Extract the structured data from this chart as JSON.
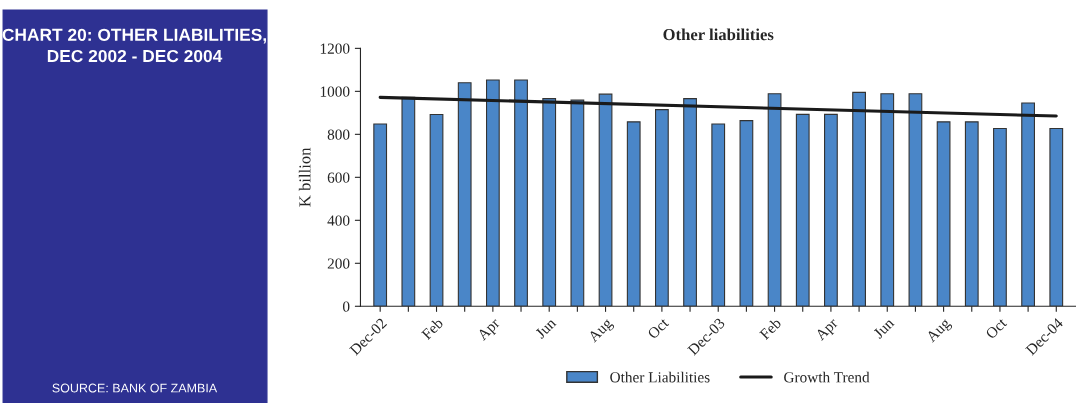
{
  "chart_data": {
    "type": "bar",
    "title": "Other liabilities",
    "subtitle": "CHART 20: OTHER LIABILITIES, DEC 2002 - DEC 2004",
    "ylabel": "K billion",
    "categories": [
      "Dec-02",
      null,
      "Feb",
      null,
      "Apr",
      null,
      "Jun",
      null,
      "Aug",
      null,
      "Oct",
      null,
      "Dec-03",
      null,
      "Feb",
      null,
      "Apr",
      null,
      "Jun",
      null,
      "Aug",
      null,
      "Oct",
      null,
      "Dec-04"
    ],
    "series": [
      {
        "name": "Other Liabilities",
        "color": "#4a86c8",
        "values": [
          848,
          972,
          892,
          1040,
          1053,
          1053,
          966,
          959,
          987,
          858,
          915,
          966,
          848,
          864,
          989,
          893,
          893,
          995,
          989,
          989,
          858,
          858,
          827,
          946,
          827
        ]
      },
      {
        "name": "Growth Trend",
        "type": "line",
        "color": "#1a1a1a",
        "values": [
          972,
          null,
          null,
          null,
          null,
          null,
          null,
          null,
          null,
          null,
          null,
          null,
          null,
          null,
          null,
          null,
          null,
          null,
          null,
          null,
          null,
          null,
          null,
          null,
          885
        ]
      }
    ],
    "ylim": [
      0,
      1200
    ],
    "yticks": [
      0,
      200,
      400,
      600,
      800,
      1000,
      1200
    ],
    "grid": false,
    "legend": "bottom",
    "marker": "none",
    "line_style": "solid",
    "annotations": [
      "SOURCE: BANK OF ZAMBIA"
    ]
  }
}
